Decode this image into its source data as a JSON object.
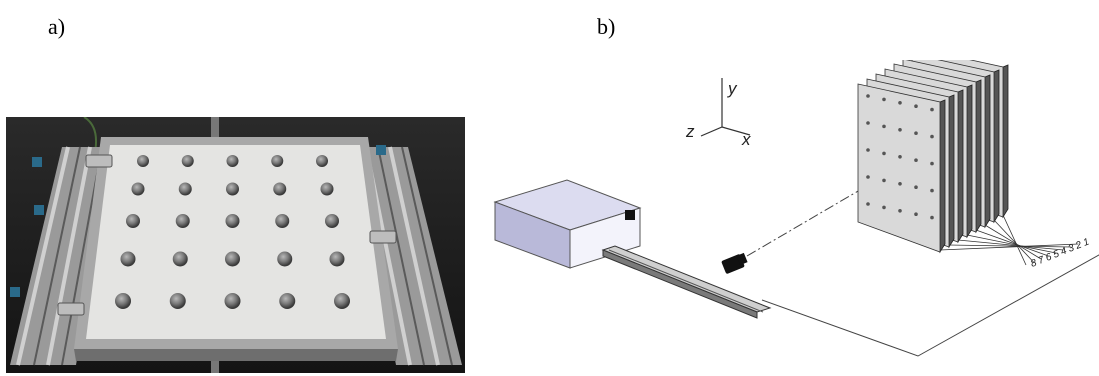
{
  "panels": {
    "a": {
      "label": "a)"
    },
    "b": {
      "label": "b)"
    }
  },
  "diagram": {
    "axes": {
      "y": "y",
      "z": "z",
      "x": "x"
    },
    "plate_numbers": [
      "8",
      "7",
      "6",
      "5",
      "4",
      "3",
      "2",
      "1"
    ]
  },
  "colors": {
    "box_top": "#dcdcf0",
    "box_front": "#b9b9d9",
    "box_side": "#f3f3fb",
    "plate_face": "#d9d9d9",
    "photo_background": "#1e1e1e",
    "photo_board": "#e4e4e2"
  }
}
